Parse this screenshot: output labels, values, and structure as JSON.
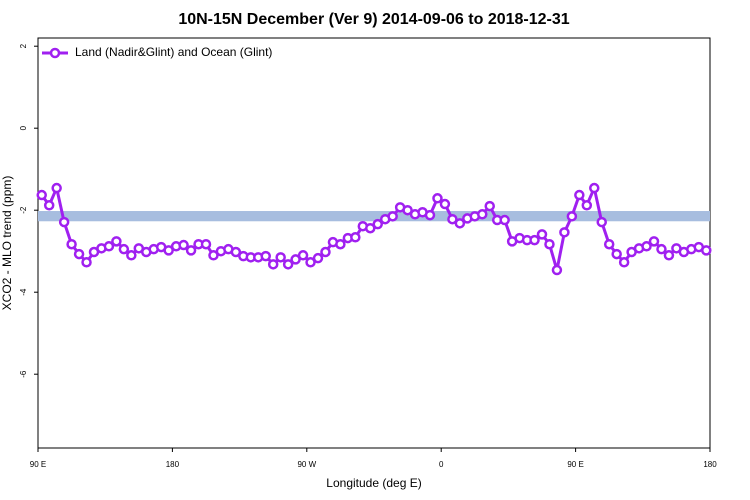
{
  "chart_data": {
    "type": "line",
    "title": "10N-15N December (Ver 9)   2014-09-06 to 2018-12-31",
    "x_label": "Longitude (deg E)",
    "y_label": "XCO2 - MLO trend (ppm)",
    "xlim": [
      90,
      540
    ],
    "ylim": [
      -7.8,
      2.2
    ],
    "xticks": [
      {
        "value": 90,
        "label": "90 E"
      },
      180,
      {
        "value": 270,
        "label": "90 W"
      },
      {
        "value": 360,
        "label": "0"
      },
      {
        "value": 450,
        "label": "90 E"
      },
      {
        "value": 540,
        "label": "180"
      }
    ],
    "yticks": [
      2,
      0,
      -2,
      -4,
      -6
    ],
    "band": [
      -2.27,
      -2.02
    ],
    "band_color": "#a7bddf",
    "legend": "top-left",
    "x": [
      92.5,
      97.5,
      102.5,
      107.5,
      112.5,
      117.5,
      122.5,
      127.5,
      132.5,
      137.5,
      142.5,
      147.5,
      152.5,
      157.5,
      162.5,
      167.5,
      172.5,
      177.5,
      182.5,
      187.5,
      192.5,
      197.5,
      202.5,
      207.5,
      212.5,
      217.5,
      222.5,
      227.5,
      232.5,
      237.5,
      242.5,
      247.5,
      252.5,
      257.5,
      262.5,
      267.5,
      272.5,
      277.5,
      282.5,
      287.5,
      292.5,
      297.5,
      302.5,
      307.5,
      312.5,
      317.5,
      322.5,
      327.5,
      332.5,
      337.5,
      342.5,
      347.5,
      352.5,
      357.5,
      362.5,
      367.5,
      372.5,
      377.5,
      382.5,
      387.5,
      392.5,
      397.5,
      402.5,
      407.5,
      412.5,
      417.5,
      422.5,
      427.5,
      432.5,
      437.5,
      442.5,
      447.5,
      452.5,
      457.5,
      462.5,
      467.5,
      472.5,
      477.5,
      482.5,
      487.5,
      492.5,
      497.5,
      502.5,
      507.5,
      512.5,
      517.5,
      522.5,
      527.5,
      532.5,
      537.5
    ],
    "series": [
      {
        "name": "Land (Nadir&Glint) and Ocean (Glint)",
        "color": "#a020f0",
        "values": [
          -1.63,
          -1.88,
          -1.46,
          -2.29,
          -2.83,
          -3.07,
          -3.27,
          -3.02,
          -2.93,
          -2.88,
          -2.76,
          -2.95,
          -3.1,
          -2.93,
          -3.02,
          -2.95,
          -2.9,
          -2.98,
          -2.88,
          -2.85,
          -2.98,
          -2.83,
          -2.83,
          -3.1,
          -3.0,
          -2.95,
          -3.02,
          -3.12,
          -3.15,
          -3.15,
          -3.12,
          -3.32,
          -3.15,
          -3.32,
          -3.2,
          -3.1,
          -3.27,
          -3.17,
          -3.02,
          -2.78,
          -2.83,
          -2.68,
          -2.66,
          -2.39,
          -2.44,
          -2.34,
          -2.22,
          -2.15,
          -1.93,
          -2.0,
          -2.1,
          -2.05,
          -2.12,
          -1.71,
          -1.85,
          -2.22,
          -2.32,
          -2.2,
          -2.15,
          -2.1,
          -1.9,
          -2.24,
          -2.24,
          -2.76,
          -2.68,
          -2.73,
          -2.73,
          -2.59,
          -2.83,
          -3.46,
          -2.54,
          -2.15,
          -1.63,
          -1.88,
          -1.46,
          -2.29,
          -2.83,
          -3.07,
          -3.27,
          -3.02,
          -2.93,
          -2.88,
          -2.76,
          -2.95,
          -3.1,
          -2.93,
          -3.02,
          -2.95,
          -2.9,
          -2.98
        ]
      }
    ]
  }
}
